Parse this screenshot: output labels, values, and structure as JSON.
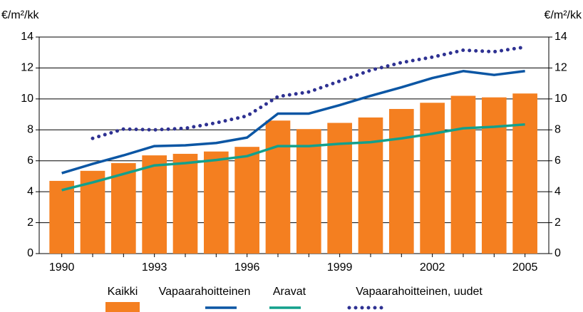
{
  "chart_data": {
    "type": "bar",
    "y_label": "€/m²/kk",
    "y2_label": "€/m²/kk",
    "categories": [
      "1990",
      null,
      null,
      "1993",
      null,
      null,
      "1996",
      null,
      null,
      "1999",
      null,
      null,
      "2002",
      null,
      null,
      "2005"
    ],
    "ylim": [
      0,
      14
    ],
    "yticks": [
      0,
      2,
      4,
      6,
      8,
      10,
      12,
      14
    ],
    "y2lim": [
      0,
      14
    ],
    "y2ticks": [
      0,
      2,
      4,
      6,
      8,
      10,
      12,
      14
    ],
    "grid": true,
    "legend": "bottom",
    "series": [
      {
        "name": "Kaikki",
        "type": "bar",
        "color": "#f47f20",
        "values": [
          4.7,
          5.35,
          5.85,
          6.35,
          6.45,
          6.6,
          6.9,
          8.6,
          8.05,
          8.45,
          8.8,
          9.35,
          9.75,
          10.2,
          10.1,
          10.35
        ]
      },
      {
        "name": "Vapaarahoitteinen",
        "type": "line",
        "style": "solid",
        "color": "#0b56a4",
        "values": [
          5.2,
          5.8,
          6.35,
          6.95,
          7.0,
          7.15,
          7.5,
          9.05,
          9.05,
          9.6,
          10.2,
          10.75,
          11.35,
          11.8,
          11.55,
          11.8
        ]
      },
      {
        "name": "Aravat",
        "type": "line",
        "style": "solid",
        "color": "#13a08c",
        "values": [
          4.1,
          4.6,
          5.15,
          5.7,
          5.85,
          6.05,
          6.3,
          6.95,
          6.95,
          7.1,
          7.2,
          7.45,
          7.75,
          8.1,
          8.2,
          8.35
        ]
      },
      {
        "name": "Vapaarahoitteinen, uudet",
        "type": "line",
        "style": "dotted",
        "color": "#2e3192",
        "values": [
          null,
          7.45,
          8.05,
          8.0,
          8.1,
          8.45,
          8.9,
          10.15,
          10.45,
          11.15,
          11.85,
          12.35,
          12.7,
          13.15,
          13.05,
          13.35
        ]
      }
    ]
  }
}
